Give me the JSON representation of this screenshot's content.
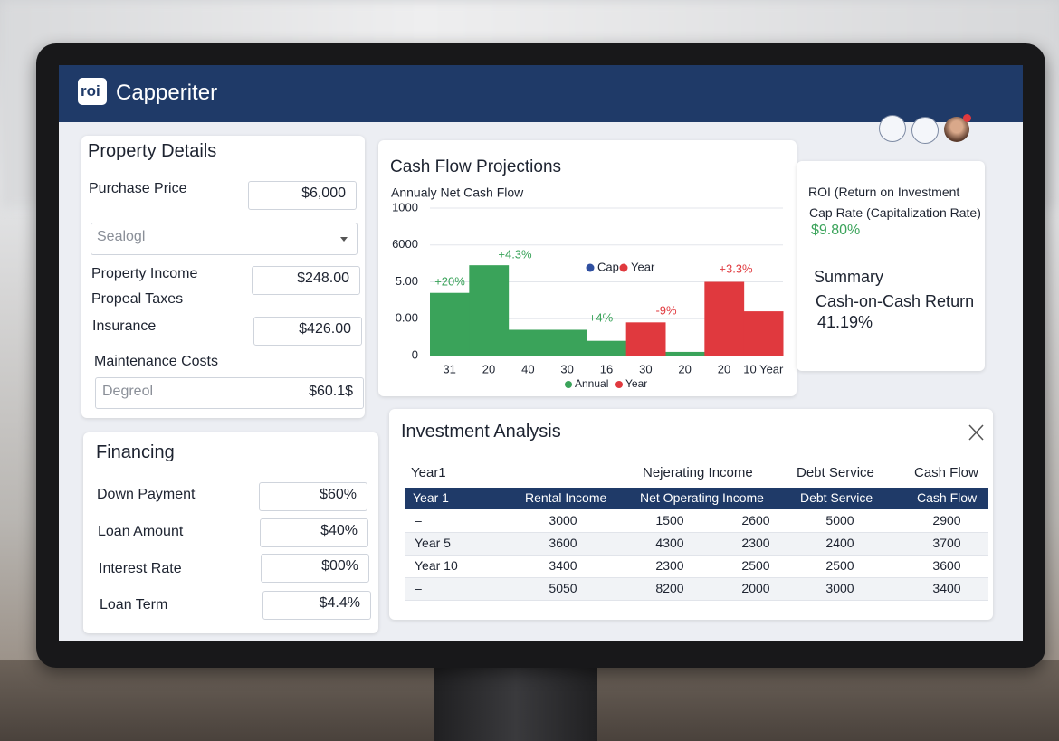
{
  "header": {
    "logo": "roi",
    "app_name": "Capperiter"
  },
  "property_details": {
    "title": "Property Details",
    "purchase_price": {
      "label": "Purchase Price",
      "value": "$6,000"
    },
    "select": "Sealogl",
    "property_income": {
      "label": "Property Income",
      "value": "$248.00"
    },
    "property_taxes": "Propeal Taxes",
    "insurance": {
      "label": "Insurance",
      "value": "$426.00"
    },
    "maintenance": {
      "label": "Maintenance Costs",
      "placeholder": "Degreol",
      "value": "$60.1$"
    }
  },
  "financing": {
    "title": "Financing",
    "fields": [
      {
        "label": "Down Payment",
        "value": "$60%"
      },
      {
        "label": "Loan Amount",
        "value": "$40%"
      },
      {
        "label": "Interest Rate",
        "value": "$00%"
      },
      {
        "label": "Loan Term",
        "value": "$4.4%"
      }
    ]
  },
  "chart_data": {
    "type": "bar",
    "title": "Cash Flow Projections",
    "subtitle": "Annualy Net Cash Flow",
    "categories": [
      "31",
      "20",
      "40",
      "30",
      "16",
      "30",
      "20",
      "20",
      "10 Year"
    ],
    "series": [
      {
        "name": "Annual",
        "color": "#3aa35a",
        "values": [
          1.7,
          2.45,
          0.7,
          0.7,
          0.4,
          null,
          0.1,
          null,
          null
        ]
      },
      {
        "name": "Year",
        "color": "#e0393e",
        "values": [
          null,
          null,
          null,
          null,
          null,
          0.9,
          null,
          2.0,
          1.2
        ]
      }
    ],
    "ylim": [
      0,
      4
    ],
    "yticks": [
      {
        "value": 0,
        "label": "0"
      },
      {
        "value": 1,
        "label": "0.00"
      },
      {
        "value": 2,
        "label": "5.00"
      },
      {
        "value": 3,
        "label": "6000"
      },
      {
        "value": 4,
        "label": "1000"
      }
    ],
    "grid": true,
    "top_legend": [
      {
        "name": "Cap",
        "color": "#2f4fa0"
      },
      {
        "name": "Year",
        "color": "#e0393e"
      }
    ],
    "annotations": [
      {
        "text": "+20%",
        "color": "#3aa35a"
      },
      {
        "text": "+4.3%",
        "color": "#3aa35a"
      },
      {
        "text": "+4%",
        "color": "#3aa35a"
      },
      {
        "text": "-9%",
        "color": "#e0393e"
      },
      {
        "text": "+3.3%",
        "color": "#e0393e"
      }
    ]
  },
  "roi_panel": {
    "roi_label": "ROI (Return on Investment",
    "cap_rate_label": "Cap Rate (Capitalization Rate)",
    "cap_rate_value": "$9.80%",
    "summary_title": "Summary",
    "coc_label": "Cash-on-Cash Return",
    "coc_value": "41.19%"
  },
  "investment_analysis": {
    "title": "Investment Analysis",
    "top_header": [
      "Year1",
      "Nejerating Income",
      "Debt Service",
      "Cash Flow"
    ],
    "header": [
      "Year 1",
      "Rental Income",
      "Net Operating Income",
      "Debt Service",
      "Cash Flow"
    ],
    "rows": [
      [
        "–",
        "3000",
        "1500",
        "2600",
        "5000",
        "2900"
      ],
      [
        "Year 5",
        "3600",
        "4300",
        "2300",
        "2400",
        "3700"
      ],
      [
        "Year 10",
        "3400",
        "2300",
        "2500",
        "2500",
        "3600"
      ],
      [
        "–",
        "5050",
        "8200",
        "2000",
        "3000",
        "3400"
      ]
    ]
  }
}
